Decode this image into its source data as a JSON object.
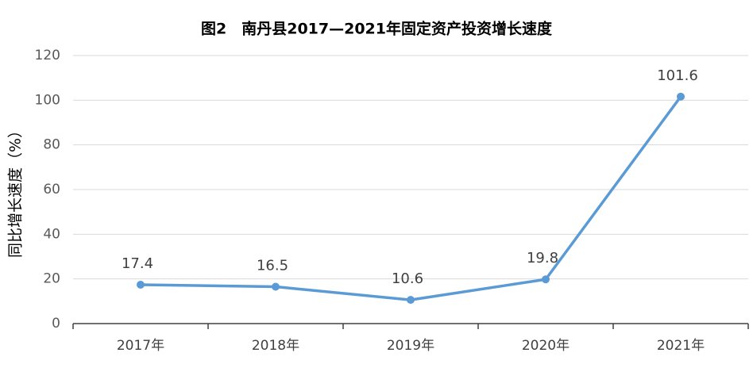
{
  "chart_data": {
    "type": "line",
    "title": "图2　南丹县2017—2021年固定资产投资增长速度",
    "y_label": "同比增长速度（%）",
    "categories": [
      "2017年",
      "2018年",
      "2019年",
      "2020年",
      "2021年"
    ],
    "values": [
      17.4,
      16.5,
      10.6,
      19.8,
      101.6
    ],
    "color": "#5b9bd5",
    "ylim": [
      0,
      120
    ],
    "yticks": [
      0,
      20,
      40,
      60,
      80,
      100,
      120
    ],
    "grid": true
  }
}
